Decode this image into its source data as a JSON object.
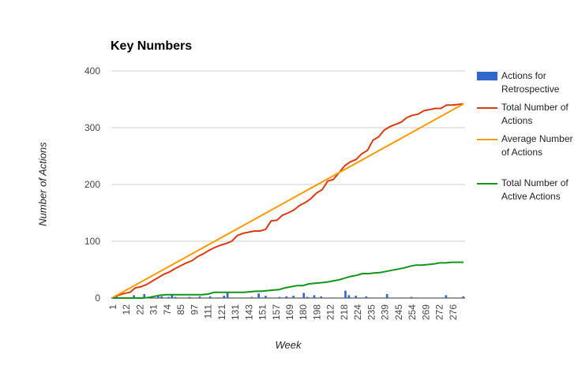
{
  "chart_data": {
    "type": "bar+line",
    "title": "Key Numbers",
    "xlabel": "Week",
    "ylabel": "Number of Actions",
    "ylim": [
      0,
      400
    ],
    "yticks": [
      0,
      100,
      200,
      300,
      400
    ],
    "grid": true,
    "legend_position": "right",
    "x_tick_labels": [
      "1",
      "12",
      "22",
      "31",
      "74",
      "85",
      "97",
      "111",
      "121",
      "131",
      "143",
      "151",
      "157",
      "169",
      "180",
      "198",
      "212",
      "218",
      "224",
      "235",
      "239",
      "245",
      "254",
      "269",
      "272",
      "276"
    ],
    "series": [
      {
        "name": "Actions for Retrospective",
        "type": "bar",
        "color": "#3366cc",
        "values": [
          1,
          5,
          0,
          1,
          0,
          0,
          5,
          0,
          0,
          7,
          2,
          0,
          1,
          3,
          3,
          0,
          2,
          5,
          2,
          0,
          0,
          0,
          2,
          1,
          0,
          3,
          0,
          0,
          3,
          0,
          1,
          0,
          4,
          10,
          0,
          0,
          0,
          1,
          0,
          1,
          2,
          0,
          8,
          1,
          4,
          0,
          0,
          0,
          2,
          0,
          3,
          1,
          4,
          0,
          0,
          9,
          2,
          0,
          5,
          0,
          3,
          0,
          0,
          1,
          0,
          0,
          0,
          13,
          5,
          0,
          4,
          0,
          0,
          3,
          0,
          0,
          0,
          0,
          0,
          7,
          0,
          0,
          0,
          1,
          0,
          0,
          2,
          0,
          0,
          0,
          0,
          0,
          0,
          0,
          0,
          0,
          5,
          0,
          0,
          0,
          0,
          3
        ]
      },
      {
        "name": "Total Number of Actions",
        "type": "line",
        "color": "#dc3912",
        "values": [
          1,
          5,
          8,
          10,
          18,
          20,
          24,
          30,
          36,
          42,
          46,
          52,
          57,
          62,
          66,
          73,
          78,
          84,
          89,
          93,
          96,
          100,
          110,
          114,
          116,
          118,
          118,
          121,
          136,
          137,
          146,
          150,
          155,
          163,
          168,
          175,
          185,
          191,
          206,
          209,
          221,
          233,
          240,
          244,
          254,
          260,
          278,
          284,
          296,
          302,
          306,
          310,
          318,
          322,
          324,
          330,
          332,
          334,
          334,
          340,
          340,
          341,
          342
        ]
      },
      {
        "name": "Average Number of Actions",
        "type": "line",
        "color": "#ff9900",
        "values": [
          1,
          342
        ]
      },
      {
        "name": "Total Number of Active Actions",
        "type": "line",
        "color": "#109618",
        "values": [
          0,
          0,
          0,
          0,
          0,
          0,
          1,
          3,
          5,
          6,
          6,
          6,
          6,
          6,
          6,
          6,
          7,
          10,
          10,
          10,
          10,
          10,
          10,
          11,
          12,
          12,
          13,
          14,
          15,
          18,
          20,
          22,
          22,
          25,
          26,
          27,
          28,
          30,
          32,
          35,
          38,
          40,
          43,
          43,
          44,
          45,
          47,
          49,
          51,
          53,
          56,
          58,
          58,
          59,
          60,
          62,
          62,
          63,
          63,
          63
        ]
      }
    ]
  }
}
